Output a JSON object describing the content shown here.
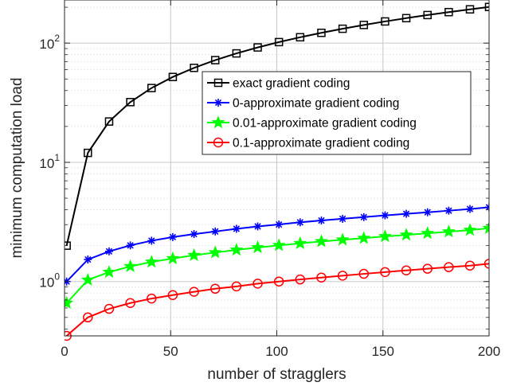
{
  "chart_data": {
    "type": "line",
    "xlabel": "number of stragglers",
    "ylabel": "minimum computation load",
    "xlim": [
      0,
      200
    ],
    "ylim": [
      0.35,
      230
    ],
    "yscale": "log",
    "grid": true,
    "x_ticks": [
      0,
      50,
      100,
      150,
      200
    ],
    "x_tick_labels": [
      "0",
      "50",
      "100",
      "150",
      "200"
    ],
    "y_ticks": [
      1,
      10,
      100
    ],
    "y_tick_labels": [
      {
        "base": "10",
        "exp": "0"
      },
      {
        "base": "10",
        "exp": "1"
      },
      {
        "base": "10",
        "exp": "2"
      }
    ],
    "legend_position": "upper-right-center",
    "x": [
      1,
      11,
      21,
      31,
      41,
      51,
      61,
      71,
      81,
      91,
      101,
      111,
      121,
      131,
      141,
      151,
      161,
      171,
      181,
      191,
      200
    ],
    "series": [
      {
        "name": "exact gradient coding",
        "color": "#000000",
        "marker": "square",
        "values": [
          2,
          12,
          22,
          32,
          42,
          52,
          62,
          72,
          82,
          92,
          102,
          112,
          122,
          132,
          142,
          152,
          162,
          172,
          182,
          192,
          201
        ]
      },
      {
        "name": "0-approximate gradient coding",
        "color": "#0000ff",
        "marker": "asterisk",
        "values": [
          1.0,
          1.53,
          1.79,
          2.01,
          2.2,
          2.36,
          2.5,
          2.63,
          2.77,
          2.9,
          3.01,
          3.14,
          3.25,
          3.36,
          3.47,
          3.59,
          3.7,
          3.81,
          3.93,
          4.06,
          4.2
        ]
      },
      {
        "name": "0.01-approximate gradient coding",
        "color": "#00ff00",
        "marker": "pentagram",
        "values": [
          0.66,
          1.03,
          1.2,
          1.34,
          1.46,
          1.56,
          1.66,
          1.75,
          1.84,
          1.93,
          2.01,
          2.09,
          2.17,
          2.24,
          2.31,
          2.39,
          2.46,
          2.54,
          2.62,
          2.7,
          2.8
        ]
      },
      {
        "name": "0.1-approximate gradient coding",
        "color": "#ff0000",
        "marker": "circle",
        "values": [
          0.35,
          0.5,
          0.59,
          0.66,
          0.72,
          0.77,
          0.82,
          0.87,
          0.91,
          0.96,
          1.0,
          1.04,
          1.08,
          1.12,
          1.16,
          1.2,
          1.24,
          1.28,
          1.32,
          1.36,
          1.41
        ]
      }
    ]
  }
}
